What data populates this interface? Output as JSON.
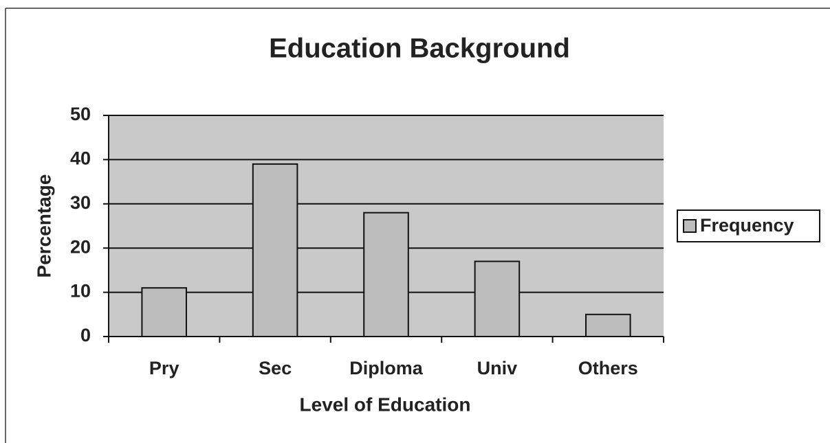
{
  "chart_data": {
    "type": "bar",
    "title": "Education Background",
    "x_label": "Level of Education",
    "y_label": "Percentage",
    "categories": [
      "Pry",
      "Sec",
      "Diploma",
      "Univ",
      "Others"
    ],
    "series": [
      {
        "name": "Frequency",
        "color": "#bcbcbc",
        "values": [
          11,
          39,
          28,
          17,
          5
        ]
      }
    ],
    "ylim": [
      0,
      50
    ],
    "yticks": [
      0,
      10,
      20,
      30,
      40,
      50
    ],
    "grid": true,
    "legend": "right"
  }
}
